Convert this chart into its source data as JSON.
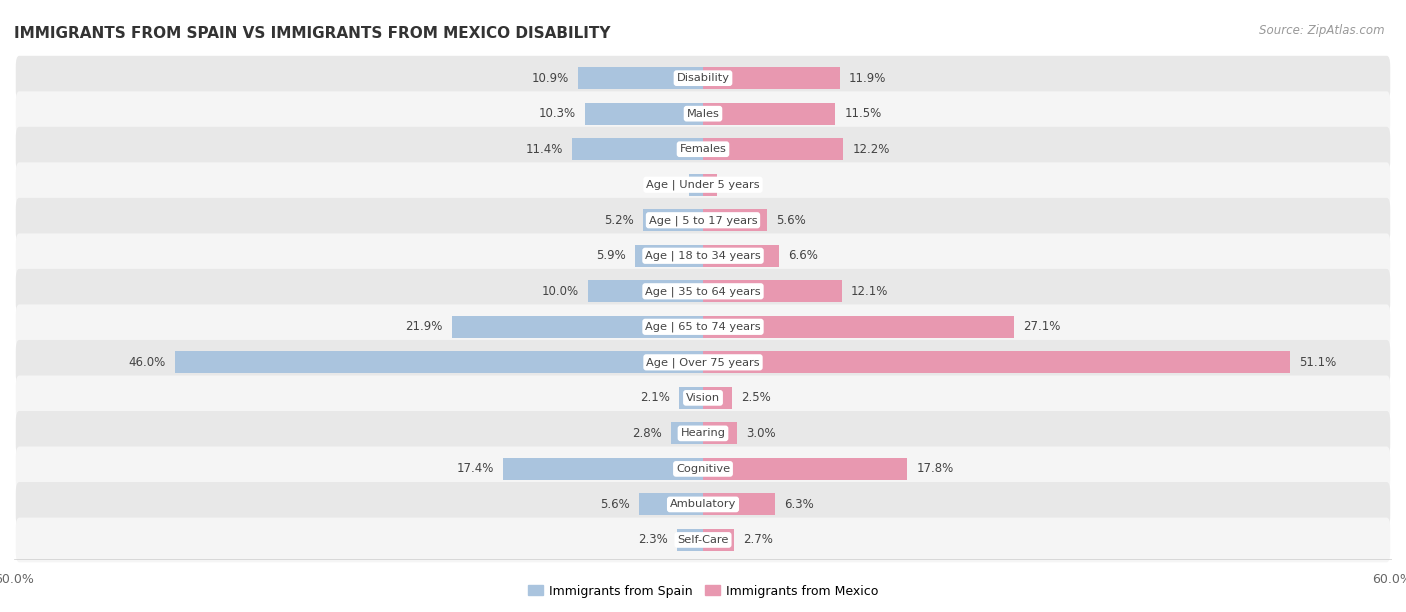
{
  "title": "IMMIGRANTS FROM SPAIN VS IMMIGRANTS FROM MEXICO DISABILITY",
  "source": "Source: ZipAtlas.com",
  "categories": [
    "Disability",
    "Males",
    "Females",
    "Age | Under 5 years",
    "Age | 5 to 17 years",
    "Age | 18 to 34 years",
    "Age | 35 to 64 years",
    "Age | 65 to 74 years",
    "Age | Over 75 years",
    "Vision",
    "Hearing",
    "Cognitive",
    "Ambulatory",
    "Self-Care"
  ],
  "spain_values": [
    10.9,
    10.3,
    11.4,
    1.2,
    5.2,
    5.9,
    10.0,
    21.9,
    46.0,
    2.1,
    2.8,
    17.4,
    5.6,
    2.3
  ],
  "mexico_values": [
    11.9,
    11.5,
    12.2,
    1.2,
    5.6,
    6.6,
    12.1,
    27.1,
    51.1,
    2.5,
    3.0,
    17.8,
    6.3,
    2.7
  ],
  "spain_color": "#aac4de",
  "mexico_color": "#e898b0",
  "spain_label": "Immigrants from Spain",
  "mexico_label": "Immigrants from Mexico",
  "max_val": 60.0,
  "fig_bg": "#ffffff",
  "row_bg_even": "#e8e8e8",
  "row_bg_odd": "#f5f5f5"
}
